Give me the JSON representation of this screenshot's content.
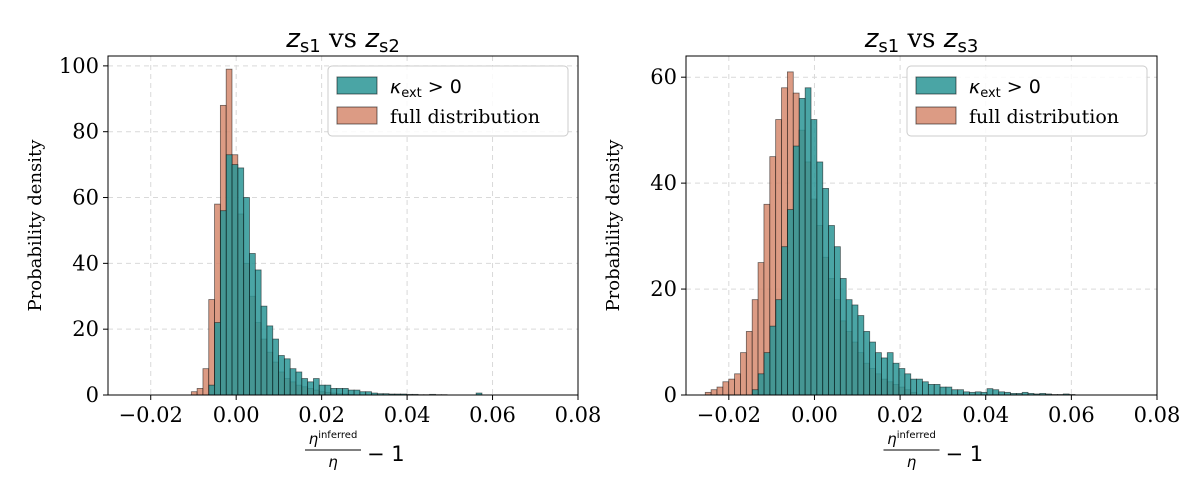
{
  "colors": {
    "kappa_series": "#2a9595",
    "full_series": "#d68a6e",
    "overlap_hint": "#7a5c3e",
    "grid": "#d9d9d9"
  },
  "ylabel": "Probability density",
  "xlabel": {
    "numerator": "η",
    "superscript": "inferred",
    "denominator": "η",
    "suffix": "− 1"
  },
  "legend": {
    "kappa_label": "κ",
    "kappa_sub": "ext",
    "kappa_cond": " > 0",
    "full_label": "full distribution"
  },
  "chart_data": [
    {
      "type": "bar",
      "title": {
        "z1": "z",
        "z1_sub": "s1",
        "mid": " vs ",
        "z2": "z",
        "z2_sub": "s2"
      },
      "xlim": [
        -0.03,
        0.08
      ],
      "ylim": [
        0,
        103
      ],
      "grid": true,
      "legend_position": "top-right",
      "xticks": [
        -0.02,
        0.0,
        0.02,
        0.04,
        0.06,
        0.08
      ],
      "xtick_labels": [
        "−0.02",
        "0.00",
        "0.02",
        "0.04",
        "0.06",
        "0.08"
      ],
      "yticks": [
        0,
        20,
        40,
        60,
        80,
        100
      ],
      "ytick_labels": [
        "0",
        "20",
        "40",
        "60",
        "80",
        "100"
      ],
      "series": [
        {
          "name": "full distribution",
          "color_key": "full_series",
          "bin_start": -0.0105,
          "bin_width": 0.00136,
          "values": [
            1,
            2,
            8,
            29,
            58,
            88,
            99,
            73,
            55,
            40,
            30,
            22,
            17,
            13,
            10,
            7,
            5,
            4,
            3,
            2.5,
            2,
            1.5,
            1,
            0.8,
            0.6,
            0.4,
            0.3,
            0.2
          ]
        },
        {
          "name": "κext > 0",
          "color_key": "kappa_series",
          "bin_start": -0.0064,
          "bin_width": 0.00136,
          "values": [
            3,
            22,
            56,
            73,
            70,
            69,
            60,
            43,
            38,
            27,
            21,
            17,
            12,
            11,
            8,
            7,
            5,
            4,
            5,
            3,
            3,
            2,
            2,
            2,
            1.5,
            1.5,
            1,
            1,
            0.6,
            0.4,
            0.4,
            0.3,
            0.3,
            0.3,
            0.2,
            0.2,
            0.1,
            0.1,
            0.2,
            0.1,
            0.1,
            0,
            0,
            0,
            0,
            0,
            0.6
          ]
        }
      ]
    },
    {
      "type": "bar",
      "title": {
        "z1": "z",
        "z1_sub": "s1",
        "mid": " vs ",
        "z2": "z",
        "z2_sub": "s3"
      },
      "xlim": [
        -0.03,
        0.08
      ],
      "ylim": [
        0,
        64
      ],
      "grid": true,
      "legend_position": "top-right",
      "xticks": [
        -0.02,
        0.0,
        0.02,
        0.04,
        0.06,
        0.08
      ],
      "xtick_labels": [
        "−0.02",
        "0.00",
        "0.02",
        "0.04",
        "0.06",
        "0.08"
      ],
      "yticks": [
        0,
        20,
        40,
        60
      ],
      "ytick_labels": [
        "0",
        "20",
        "40",
        "60"
      ],
      "series": [
        {
          "name": "full distribution",
          "color_key": "full_series",
          "bin_start": -0.0255,
          "bin_width": 0.00137,
          "values": [
            0.5,
            1,
            1.5,
            2.5,
            3,
            4,
            8,
            12,
            18,
            25,
            36,
            45,
            52,
            58,
            61,
            57,
            50,
            44,
            37,
            32,
            26,
            22,
            18,
            14,
            12,
            10,
            8,
            6,
            5,
            4,
            3,
            2.5,
            2,
            1.5,
            1,
            0.5
          ]
        },
        {
          "name": "κext > 0",
          "color_key": "kappa_series",
          "bin_start": -0.0145,
          "bin_width": 0.00137,
          "values": [
            1,
            4,
            8,
            13,
            18,
            28,
            35,
            47,
            56,
            58,
            52,
            44,
            39,
            32,
            28,
            22,
            18,
            17,
            15,
            12,
            10,
            8,
            7,
            8,
            6,
            5,
            4,
            3,
            3,
            2.5,
            2,
            2,
            1.5,
            1.5,
            1,
            1,
            0.6,
            0.5,
            0.6,
            0.5,
            1.2,
            1,
            0.6,
            0.5,
            0.3,
            0.3,
            0.5,
            0.3,
            0.2,
            0.3,
            0.2,
            0.1,
            0.1,
            0.2,
            0.1
          ]
        }
      ]
    }
  ]
}
